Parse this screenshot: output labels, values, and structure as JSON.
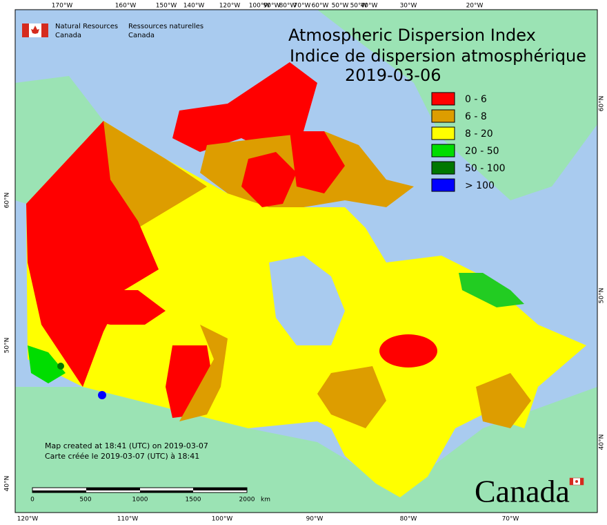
{
  "header": {
    "agency_en": [
      "Natural Resources",
      "Canada"
    ],
    "agency_fr": [
      "Ressources naturelles",
      "Canada"
    ]
  },
  "title": [
    "Atmospheric Dispersion Index",
    "Indice de dispersion atmosphérique",
    "2019-03-06"
  ],
  "legend": [
    {
      "label": "0 - 6",
      "color": "#ff0000"
    },
    {
      "label": "6 - 8",
      "color": "#dd9d00"
    },
    {
      "label": "8 - 20",
      "color": "#ffff00"
    },
    {
      "label": "20 - 50",
      "color": "#00dd00"
    },
    {
      "label": "50 - 100",
      "color": "#007700"
    },
    {
      "label": "> 100",
      "color": "#0000ff"
    }
  ],
  "top_labels": [
    "170°W",
    "160°W",
    "150°W",
    "140°W",
    "120°W",
    "100°W",
    "90°W",
    "80°W",
    "70°W",
    "60°W",
    "50°W",
    "50°W",
    "40°W",
    "30°W",
    "20°W"
  ],
  "bottom_labels": [
    "120°W",
    "110°W",
    "100°W",
    "90°W",
    "80°W",
    "70°W"
  ],
  "left_labels": [
    "60°N",
    "50°N",
    "40°N"
  ],
  "right_labels": [
    "60°N",
    "50°N",
    "40°N"
  ],
  "footer": [
    "Map created at 18:41 (UTC) on 2019-03-07",
    "Carte créée le 2019-03-07 (UTC) à 18:41"
  ],
  "scale": {
    "labels": [
      "0",
      "500",
      "1000",
      "1500",
      "2000"
    ],
    "unit": "km"
  },
  "wordmark": "Canada"
}
